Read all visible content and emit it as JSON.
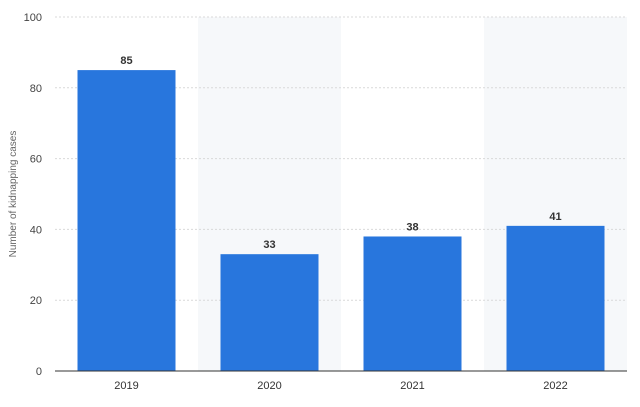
{
  "chart_data": {
    "type": "bar",
    "categories": [
      "2019",
      "2020",
      "2021",
      "2022"
    ],
    "values": [
      85,
      33,
      38,
      41
    ],
    "data_labels": [
      "85",
      "33",
      "38",
      "41"
    ],
    "ylabel": "Number of kidnapping cases",
    "xlabel": "",
    "ylim": [
      0,
      100
    ],
    "yticks": [
      "0",
      "20",
      "40",
      "60",
      "80",
      "100"
    ],
    "grid": "horizontal dotted",
    "alternating_column_shading": true,
    "colors": {
      "bar": "#2876dd",
      "grid": "#d9d9d9",
      "shade": "#f6f8fa",
      "axis": "#333333"
    }
  }
}
